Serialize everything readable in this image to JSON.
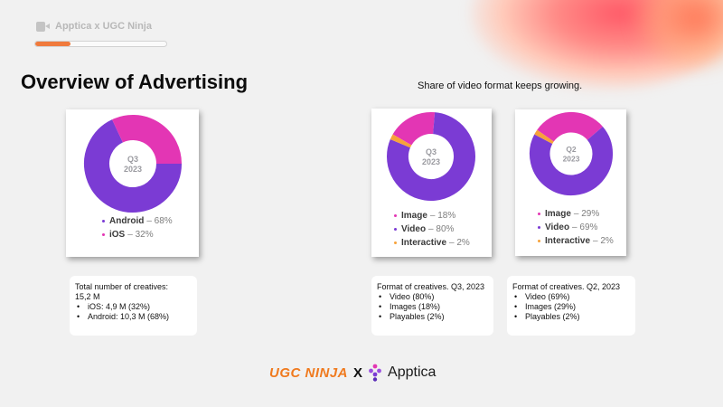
{
  "header": {
    "brand_title": "Apptica x UGC Ninja",
    "progress_fraction": 0.27,
    "icon": "video-camera-icon"
  },
  "slide": {
    "title": "Overview of Advertising",
    "subtitle": "Share of video format keeps growing."
  },
  "colors": {
    "purple": "#7b3bd4",
    "pink": "#e336b4",
    "orange": "#f7a23a",
    "center_text": "#9a9aa0"
  },
  "charts": [
    {
      "center_line1": "Q3",
      "center_line2": "2023",
      "segments": [
        {
          "name": "Android",
          "value": 68,
          "label": "– 68%",
          "color": "#7b3bd4"
        },
        {
          "name": "iOS",
          "value": 32,
          "label": "– 32%",
          "color": "#e336b4"
        }
      ]
    },
    {
      "center_line1": "Q3",
      "center_line2": "2023",
      "segments": [
        {
          "name": "Image",
          "value": 18,
          "label": "– 18%",
          "color": "#e336b4"
        },
        {
          "name": "Video",
          "value": 80,
          "label": "– 80%",
          "color": "#7b3bd4"
        },
        {
          "name": "Interactive",
          "value": 2,
          "label": "– 2%",
          "color": "#f7a23a"
        }
      ]
    },
    {
      "center_line1": "Q2",
      "center_line2": "2023",
      "segments": [
        {
          "name": "Image",
          "value": 29,
          "label": "– 29%",
          "color": "#e336b4"
        },
        {
          "name": "Video",
          "value": 69,
          "label": "– 69%",
          "color": "#7b3bd4"
        },
        {
          "name": "Interactive",
          "value": 2,
          "label": "– 2%",
          "color": "#f7a23a"
        }
      ]
    }
  ],
  "info_boxes": [
    {
      "heading": "Total number of creatives:",
      "heading2": "15,2 M",
      "items": [
        "iOS: 4,9 M (32%)",
        "Android: 10,3 M (68%)"
      ]
    },
    {
      "heading": "Format of creatives. Q3, 2023",
      "heading2": "",
      "items": [
        "Video (80%)",
        "Images (18%)",
        "Playables (2%)"
      ]
    },
    {
      "heading": "Format of creatives. Q2, 2023",
      "heading2": "",
      "items": [
        "Video (69%)",
        "Images (29%)",
        "Playables (2%)"
      ]
    }
  ],
  "footer": {
    "ugc_ninja": "UGC NINJA",
    "x": "X",
    "apptica": "Apptica",
    "apptica_icon": "apptica-logo-icon"
  }
}
